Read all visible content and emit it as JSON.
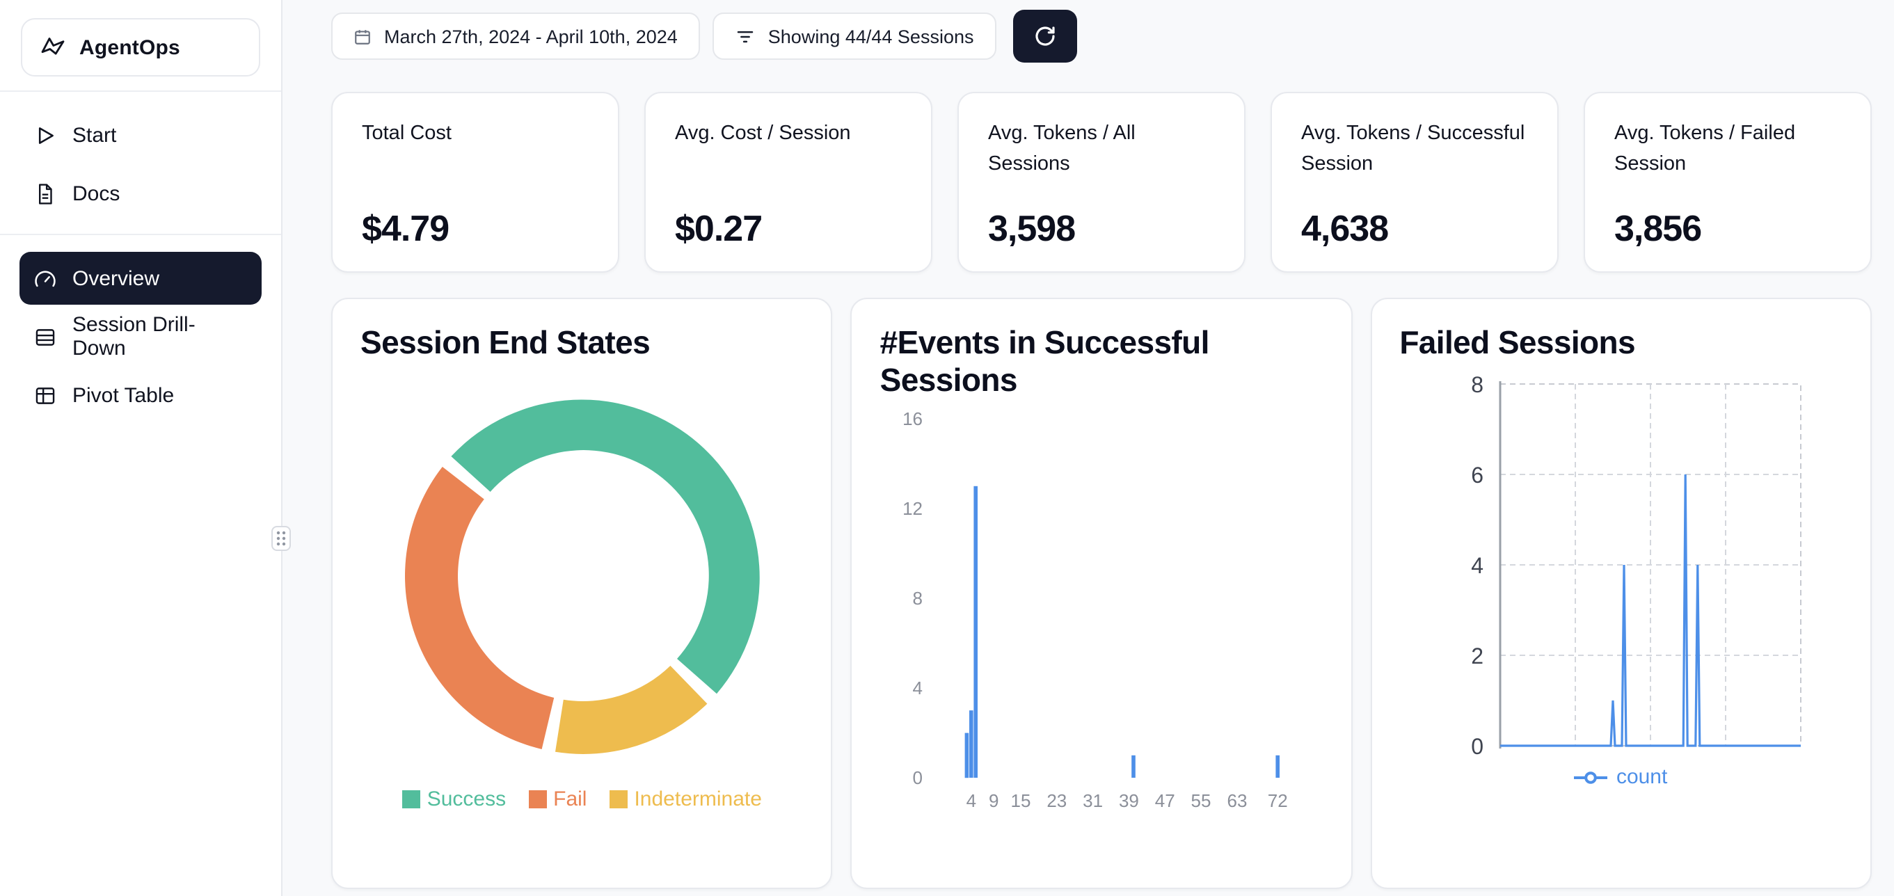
{
  "app": {
    "name": "AgentOps"
  },
  "sidebar": {
    "nav_top": [
      {
        "label": "Start"
      },
      {
        "label": "Docs"
      }
    ],
    "nav_main": [
      {
        "label": "Overview",
        "active": true
      },
      {
        "label": "Session Drill-Down",
        "active": false
      },
      {
        "label": "Pivot Table",
        "active": false
      }
    ]
  },
  "toolbar": {
    "date_range": "March 27th, 2024 - April 10th, 2024",
    "sessions_filter": "Showing 44/44 Sessions"
  },
  "stats": [
    {
      "label": "Total Cost",
      "value": "$4.79"
    },
    {
      "label": "Avg. Cost / Session",
      "value": "$0.27"
    },
    {
      "label": "Avg. Tokens / All Sessions",
      "value": "3,598"
    },
    {
      "label": "Avg. Tokens / Successful Session",
      "value": "4,638"
    },
    {
      "label": "Avg. Tokens / Failed Session",
      "value": "3,856"
    }
  ],
  "colors": {
    "accent_dark": "#151a2d",
    "success_green": "#52bd9c",
    "fail_orange": "#ea8353",
    "indeterminate_yellow": "#eebc4e",
    "chart_blue": "#4d8fe8"
  },
  "chart_data": [
    {
      "type": "pie",
      "donut": true,
      "title": "Session End States",
      "start_angle_deg": 310,
      "segments": [
        {
          "label": "Success",
          "value_pct": 51,
          "color": "#52bd9c"
        },
        {
          "label": "Indeterminate",
          "value_pct": 16,
          "color": "#eebc4e"
        },
        {
          "label": "Fail",
          "value_pct": 33,
          "color": "#ea8353"
        }
      ],
      "legend": [
        {
          "label": "Success",
          "color": "#52bd9c"
        },
        {
          "label": "Fail",
          "color": "#ea8353"
        },
        {
          "label": "Indeterminate",
          "color": "#eebc4e"
        }
      ],
      "legend_position": "bottom"
    },
    {
      "type": "bar",
      "title": "#Events in Successful Sessions",
      "xticks": [
        4,
        9,
        15,
        23,
        31,
        39,
        47,
        55,
        63,
        72
      ],
      "yticks": [
        0,
        4,
        8,
        12,
        16
      ],
      "ylim": [
        0,
        16
      ],
      "xlim_render": [
        -4,
        80
      ],
      "bars": [
        {
          "x": 3,
          "count": 2
        },
        {
          "x": 4,
          "count": 3
        },
        {
          "x": 5,
          "count": 13
        },
        {
          "x": 40,
          "count": 1
        },
        {
          "x": 72,
          "count": 1
        }
      ],
      "bar_color": "#4d8fe8",
      "grid": false
    },
    {
      "type": "line",
      "title": "Failed Sessions",
      "yticks": [
        0,
        2,
        4,
        6,
        8
      ],
      "ylim": [
        0,
        8
      ],
      "grid": "dashed",
      "series": [
        {
          "name": "count",
          "color": "#4d8fe8"
        }
      ],
      "spikes": [
        {
          "x_fraction": 0.375,
          "value": 1
        },
        {
          "x_fraction": 0.412,
          "value": 4
        },
        {
          "x_fraction": 0.616,
          "value": 6
        },
        {
          "x_fraction": 0.657,
          "value": 4
        }
      ],
      "baseline_value": 0
    }
  ]
}
